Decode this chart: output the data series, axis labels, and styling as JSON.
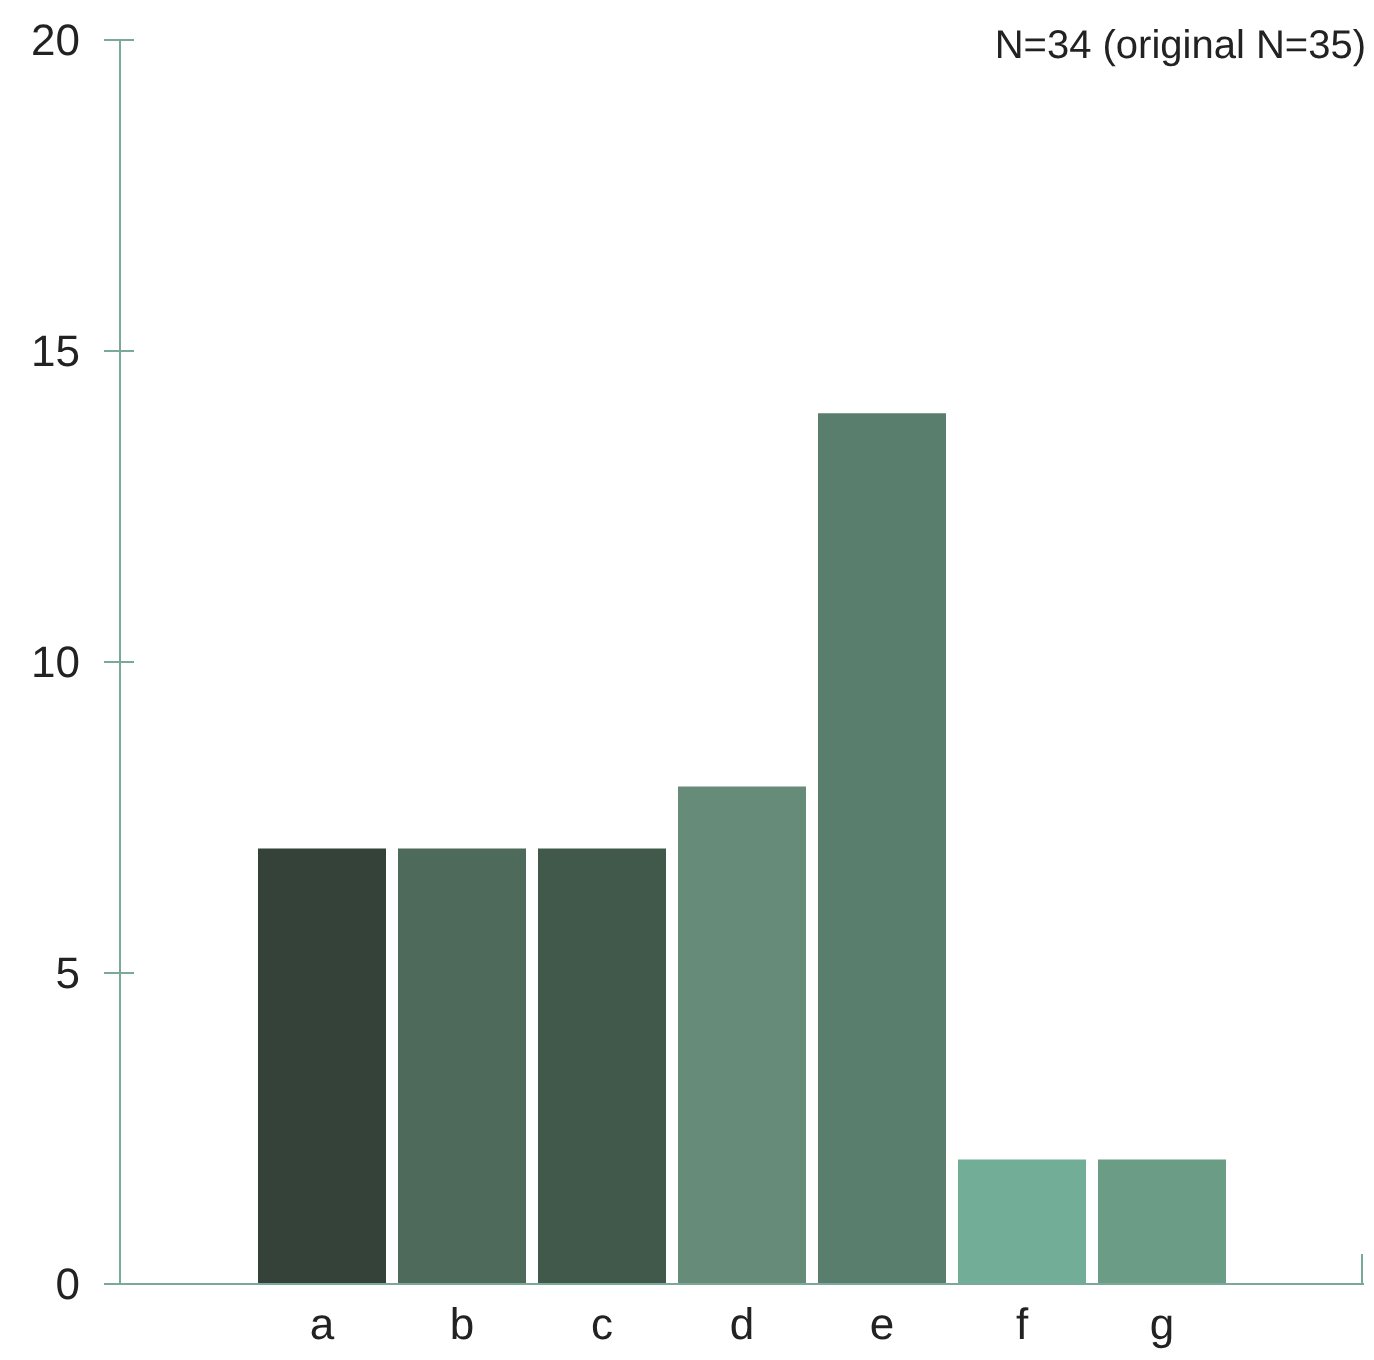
{
  "chart_data": {
    "type": "bar",
    "categories": [
      "a",
      "b",
      "c",
      "d",
      "e",
      "f",
      "g"
    ],
    "values": [
      7,
      7,
      7,
      8,
      14,
      2,
      2
    ],
    "colors": [
      "#344239",
      "#4e6a5b",
      "#41594b",
      "#678b79",
      "#5a7e6d",
      "#72ad98",
      "#6a9c86"
    ],
    "ylim": [
      0,
      20
    ],
    "yticks": [
      0,
      5,
      10,
      15,
      20
    ],
    "annotations": [
      "N=34 (original N=35)"
    ]
  }
}
